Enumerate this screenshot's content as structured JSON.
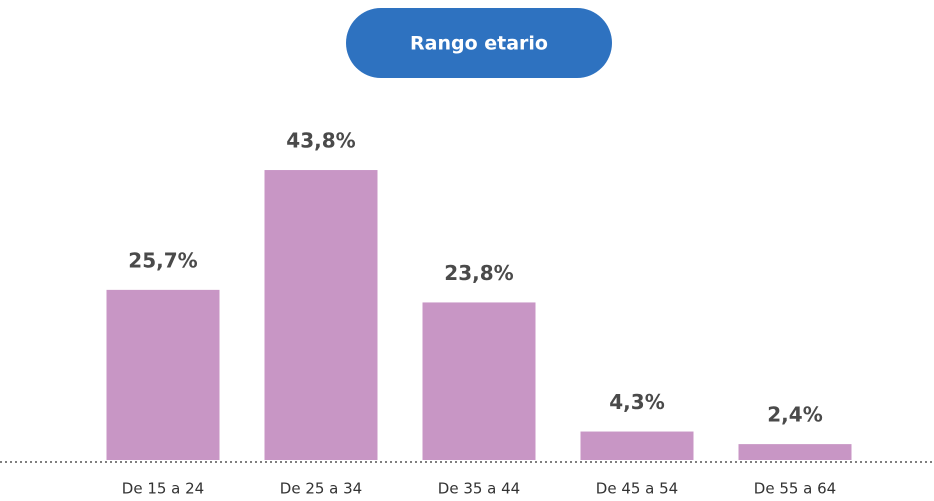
{
  "chart_data": {
    "type": "bar",
    "title": "Rango etario",
    "categories": [
      "De 15 a 24",
      "De 25 a 34",
      "De 35 a 44",
      "De 45 a 54",
      "De 55 a 64"
    ],
    "values": [
      25.7,
      43.8,
      23.8,
      4.3,
      2.4
    ],
    "value_labels": [
      "25,7%",
      "43,8%",
      "23,8%",
      "4,3%",
      "2,4%"
    ],
    "color": "#c896c5"
  }
}
